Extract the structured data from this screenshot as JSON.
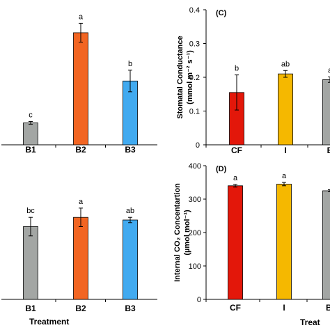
{
  "chart_data": [
    {
      "panel": "top-left",
      "type": "bar",
      "categories": [
        "B1",
        "B2",
        "B3"
      ],
      "values": [
        0.065,
        0.332,
        0.189
      ],
      "errors": [
        0.004,
        0.028,
        0.032
      ],
      "letters": [
        "c",
        "a",
        "b"
      ],
      "colors": [
        "#a3a6a4",
        "#f26522",
        "#41aaf0"
      ],
      "ylim": [
        0,
        0.4
      ]
    },
    {
      "panel": "top-right",
      "type": "bar",
      "panel_label": "(C)",
      "categories": [
        "CF",
        "I",
        "B"
      ],
      "values": [
        0.155,
        0.21,
        0.193
      ],
      "errors": [
        0.052,
        0.01,
        0.008
      ],
      "letters": [
        "b",
        "ab",
        "a"
      ],
      "colors": [
        "#e3170a",
        "#f5b800",
        "#a3a6a4"
      ],
      "ylim": [
        0,
        0.4
      ],
      "yticks": [
        "0",
        "0.1",
        "0.2",
        "0.3",
        "0.4"
      ],
      "ylabel_line1": "Stomatal Conductance",
      "ylabel_line2": "(mmol m⁻² s⁻¹)"
    },
    {
      "panel": "bottom-left",
      "type": "bar",
      "categories": [
        "B1",
        "B2",
        "B3"
      ],
      "values": [
        0.55,
        0.62,
        0.6
      ],
      "errors": [
        0.07,
        0.07,
        0.02
      ],
      "letters": [
        "bc",
        "a",
        "ab"
      ],
      "colors": [
        "#a3a6a4",
        "#f26522",
        "#41aaf0"
      ],
      "ylim": [
        0,
        1
      ],
      "xlabel": "Treatment"
    },
    {
      "panel": "bottom-right",
      "type": "bar",
      "panel_label": "(D)",
      "categories": [
        "CF",
        "I",
        "Bi"
      ],
      "values": [
        340,
        345,
        325
      ],
      "errors": [
        4,
        5,
        3
      ],
      "letters": [
        "a",
        "a",
        ""
      ],
      "colors": [
        "#e3170a",
        "#f5b800",
        "#a3a6a4"
      ],
      "ylim": [
        0,
        400
      ],
      "yticks": [
        "0",
        "100",
        "200",
        "300",
        "400"
      ],
      "ylabel_line1": "Internal CO₂ Concentartion",
      "ylabel_line2": "(µmol mol⁻¹)",
      "xlabel": "Treat"
    }
  ]
}
